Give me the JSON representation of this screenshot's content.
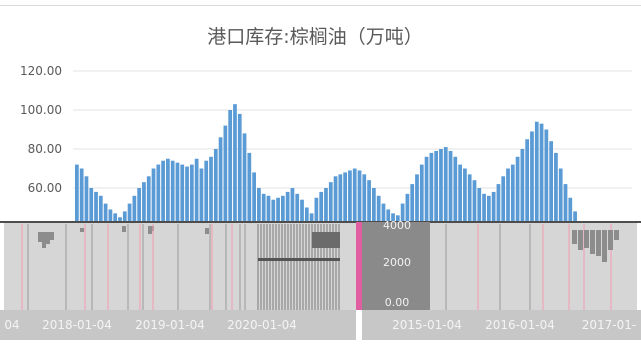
{
  "chart_data": {
    "type": "bar",
    "title": "港口库存:棕榈油（万吨）",
    "y_ticks": [
      "120.00",
      "100.00",
      "80.00",
      "60.00"
    ],
    "ylim": [
      50,
      128
    ],
    "series": [
      {
        "name": "",
        "values": [
          72,
          70,
          66,
          60,
          58,
          56,
          52,
          49,
          47,
          45,
          48,
          52,
          56,
          60,
          63,
          66,
          70,
          72,
          74,
          75,
          74,
          73,
          72,
          71,
          72,
          75,
          70,
          74,
          76,
          80,
          86,
          92,
          100,
          103,
          98,
          88,
          78,
          68,
          60,
          57,
          56,
          54,
          55,
          56,
          58,
          60,
          57,
          54,
          50,
          47,
          55,
          58,
          60,
          63,
          66,
          67,
          68,
          69,
          70,
          69,
          67,
          64,
          60,
          56,
          52,
          49,
          47,
          46,
          52,
          57,
          62,
          67,
          72,
          76,
          78,
          79,
          80,
          81,
          79,
          76,
          72,
          70,
          67,
          64,
          60,
          57,
          56,
          58,
          62,
          66,
          70,
          72,
          76,
          80,
          85,
          89,
          94,
          93,
          90,
          84,
          78,
          70,
          62,
          55,
          48
        ]
      }
    ],
    "overlay_left": {
      "x_ticks": [
        "04",
        "2018-01-04",
        "2019-01-04",
        "2020-01-04"
      ]
    },
    "overlay_right": {
      "y_ticks": [
        "4000",
        "2000",
        "0.00"
      ],
      "x_ticks": [
        "2015-01-04",
        "2016-01-04",
        "2017-01-"
      ]
    }
  }
}
